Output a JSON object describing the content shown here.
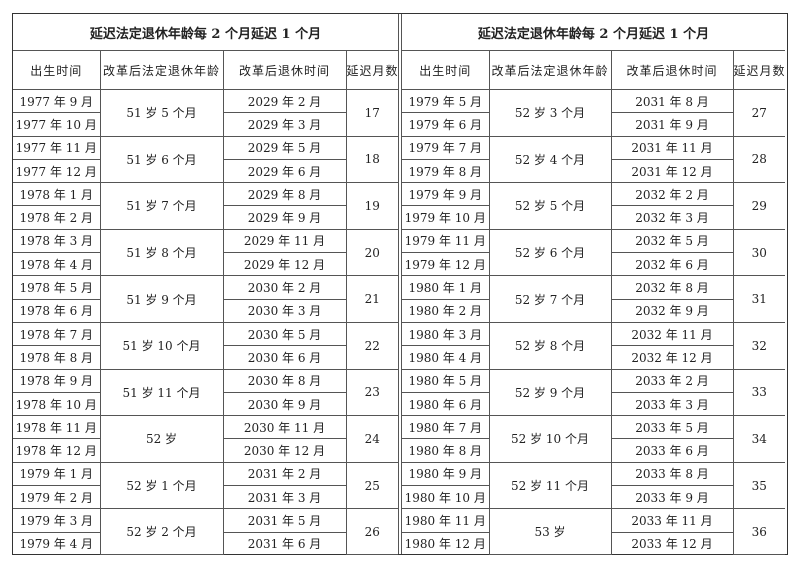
{
  "title": "延迟法定退休年龄每 2 个月延迟 1 个月",
  "headers": [
    "出生时间",
    "改革后法定退休年龄",
    "改革后退休时间",
    "延迟月数"
  ],
  "left": [
    {
      "age": "51 岁 5 个月",
      "delay": "17",
      "rows": [
        [
          "1977 年 9 月",
          "2029 年 2 月"
        ],
        [
          "1977 年 10 月",
          "2029 年 3 月"
        ]
      ]
    },
    {
      "age": "51 岁 6 个月",
      "delay": "18",
      "rows": [
        [
          "1977 年 11 月",
          "2029 年 5 月"
        ],
        [
          "1977 年 12 月",
          "2029 年 6 月"
        ]
      ]
    },
    {
      "age": "51 岁 7 个月",
      "delay": "19",
      "rows": [
        [
          "1978 年 1 月",
          "2029 年 8 月"
        ],
        [
          "1978 年 2 月",
          "2029 年 9 月"
        ]
      ]
    },
    {
      "age": "51 岁 8 个月",
      "delay": "20",
      "rows": [
        [
          "1978 年 3 月",
          "2029 年 11 月"
        ],
        [
          "1978 年 4 月",
          "2029 年 12 月"
        ]
      ]
    },
    {
      "age": "51 岁 9 个月",
      "delay": "21",
      "rows": [
        [
          "1978 年 5 月",
          "2030 年 2 月"
        ],
        [
          "1978 年 6 月",
          "2030 年 3 月"
        ]
      ]
    },
    {
      "age": "51 岁 10 个月",
      "delay": "22",
      "rows": [
        [
          "1978 年 7 月",
          "2030 年 5 月"
        ],
        [
          "1978 年 8 月",
          "2030 年 6 月"
        ]
      ]
    },
    {
      "age": "51 岁 11 个月",
      "delay": "23",
      "rows": [
        [
          "1978 年 9 月",
          "2030 年 8 月"
        ],
        [
          "1978 年 10 月",
          "2030 年 9 月"
        ]
      ]
    },
    {
      "age": "52 岁",
      "delay": "24",
      "rows": [
        [
          "1978 年 11 月",
          "2030 年 11 月"
        ],
        [
          "1978 年 12 月",
          "2030 年 12 月"
        ]
      ]
    },
    {
      "age": "52 岁 1 个月",
      "delay": "25",
      "rows": [
        [
          "1979 年 1 月",
          "2031 年 2 月"
        ],
        [
          "1979 年 2 月",
          "2031 年 3 月"
        ]
      ]
    },
    {
      "age": "52 岁 2 个月",
      "delay": "26",
      "rows": [
        [
          "1979 年 3 月",
          "2031 年 5 月"
        ],
        [
          "1979 年 4 月",
          "2031 年 6 月"
        ]
      ]
    }
  ],
  "right": [
    {
      "age": "52 岁 3 个月",
      "delay": "27",
      "rows": [
        [
          "1979 年 5 月",
          "2031 年 8 月"
        ],
        [
          "1979 年 6 月",
          "2031 年 9 月"
        ]
      ]
    },
    {
      "age": "52 岁 4 个月",
      "delay": "28",
      "rows": [
        [
          "1979 年 7 月",
          "2031 年 11 月"
        ],
        [
          "1979 年 8 月",
          "2031 年 12 月"
        ]
      ]
    },
    {
      "age": "52 岁 5 个月",
      "delay": "29",
      "rows": [
        [
          "1979 年 9 月",
          "2032 年 2 月"
        ],
        [
          "1979 年 10 月",
          "2032 年 3 月"
        ]
      ]
    },
    {
      "age": "52 岁 6 个月",
      "delay": "30",
      "rows": [
        [
          "1979 年 11 月",
          "2032 年 5 月"
        ],
        [
          "1979 年 12 月",
          "2032 年 6 月"
        ]
      ]
    },
    {
      "age": "52 岁 7 个月",
      "delay": "31",
      "rows": [
        [
          "1980 年 1 月",
          "2032 年 8 月"
        ],
        [
          "1980 年 2 月",
          "2032 年 9 月"
        ]
      ]
    },
    {
      "age": "52 岁 8 个月",
      "delay": "32",
      "rows": [
        [
          "1980 年 3 月",
          "2032 年 11 月"
        ],
        [
          "1980 年 4 月",
          "2032 年 12 月"
        ]
      ]
    },
    {
      "age": "52 岁 9 个月",
      "delay": "33",
      "rows": [
        [
          "1980 年 5 月",
          "2033 年 2 月"
        ],
        [
          "1980 年 6 月",
          "2033 年 3 月"
        ]
      ]
    },
    {
      "age": "52 岁 10 个月",
      "delay": "34",
      "rows": [
        [
          "1980 年 7 月",
          "2033 年 5 月"
        ],
        [
          "1980 年 8 月",
          "2033 年 6 月"
        ]
      ]
    },
    {
      "age": "52 岁 11 个月",
      "delay": "35",
      "rows": [
        [
          "1980 年 9 月",
          "2033 年 8 月"
        ],
        [
          "1980 年 10 月",
          "2033 年 9 月"
        ]
      ]
    },
    {
      "age": "53 岁",
      "delay": "36",
      "rows": [
        [
          "1980 年 11 月",
          "2033 年 11 月"
        ],
        [
          "1980 年 12 月",
          "2033 年 12 月"
        ]
      ]
    }
  ]
}
